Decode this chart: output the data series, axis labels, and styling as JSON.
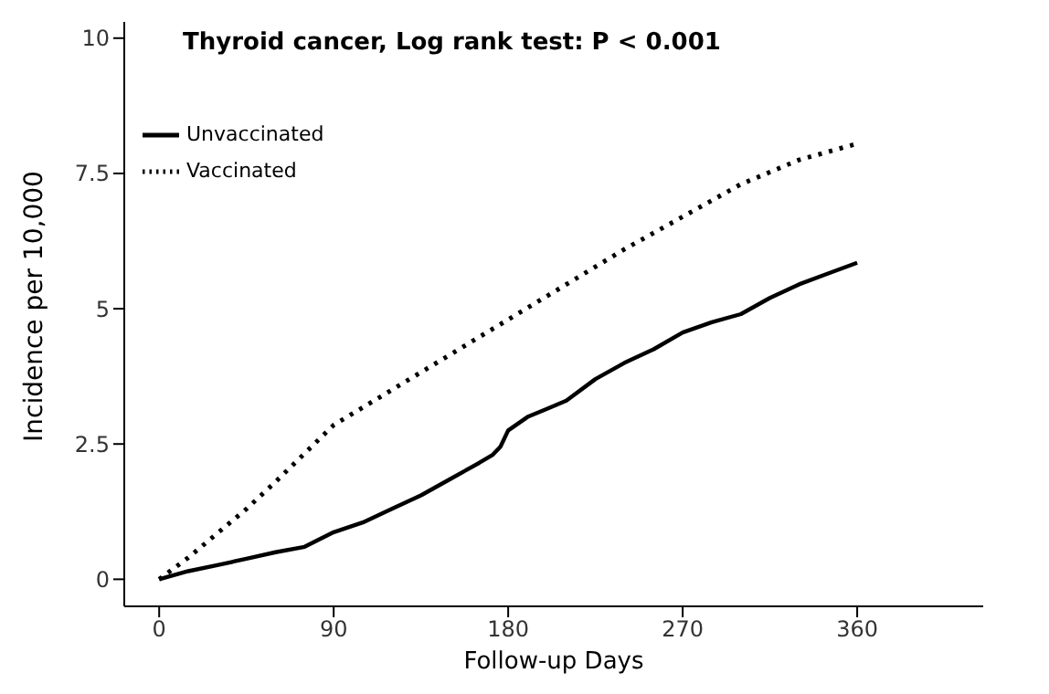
{
  "chart_data": {
    "type": "line",
    "title": "Thyroid cancer, Log rank test: P < 0.001",
    "xlabel": "Follow-up Days",
    "ylabel": "Incidence per 10,000",
    "xlim": [
      -18,
      425
    ],
    "xticks": [
      0,
      90,
      180,
      270,
      360
    ],
    "ylim": [
      -0.5,
      10.3
    ],
    "yticks": [
      0,
      {
        "value": 2.5,
        "label": "2.5"
      },
      5,
      {
        "value": 7.5,
        "label": "7.5"
      },
      10
    ],
    "grid": false,
    "legend": "top left",
    "marker": "none",
    "series": [
      {
        "name": "Unvaccinated",
        "color": "#000000",
        "line_style": "solid",
        "x": [
          0,
          15,
          30,
          45,
          60,
          75,
          90,
          105,
          120,
          135,
          150,
          165,
          172,
          176,
          180,
          190,
          200,
          210,
          225,
          240,
          255,
          270,
          285,
          300,
          315,
          330,
          345,
          360
        ],
        "values": [
          0,
          0.15,
          0.26,
          0.38,
          0.5,
          0.6,
          0.87,
          1.05,
          1.3,
          1.55,
          1.85,
          2.15,
          2.3,
          2.45,
          2.75,
          3.0,
          3.15,
          3.3,
          3.7,
          4.0,
          4.25,
          4.56,
          4.75,
          4.9,
          5.2,
          5.45,
          5.65,
          5.85
        ]
      },
      {
        "name": "Vaccinated",
        "color": "#000000",
        "line_style": "dotted",
        "x": [
          0,
          15,
          30,
          45,
          60,
          90,
          120,
          150,
          180,
          210,
          240,
          270,
          300,
          330,
          360
        ],
        "values": [
          0,
          0.4,
          0.85,
          1.3,
          1.8,
          2.85,
          3.5,
          4.15,
          4.8,
          5.45,
          6.1,
          6.7,
          7.3,
          7.75,
          8.05
        ]
      }
    ]
  }
}
